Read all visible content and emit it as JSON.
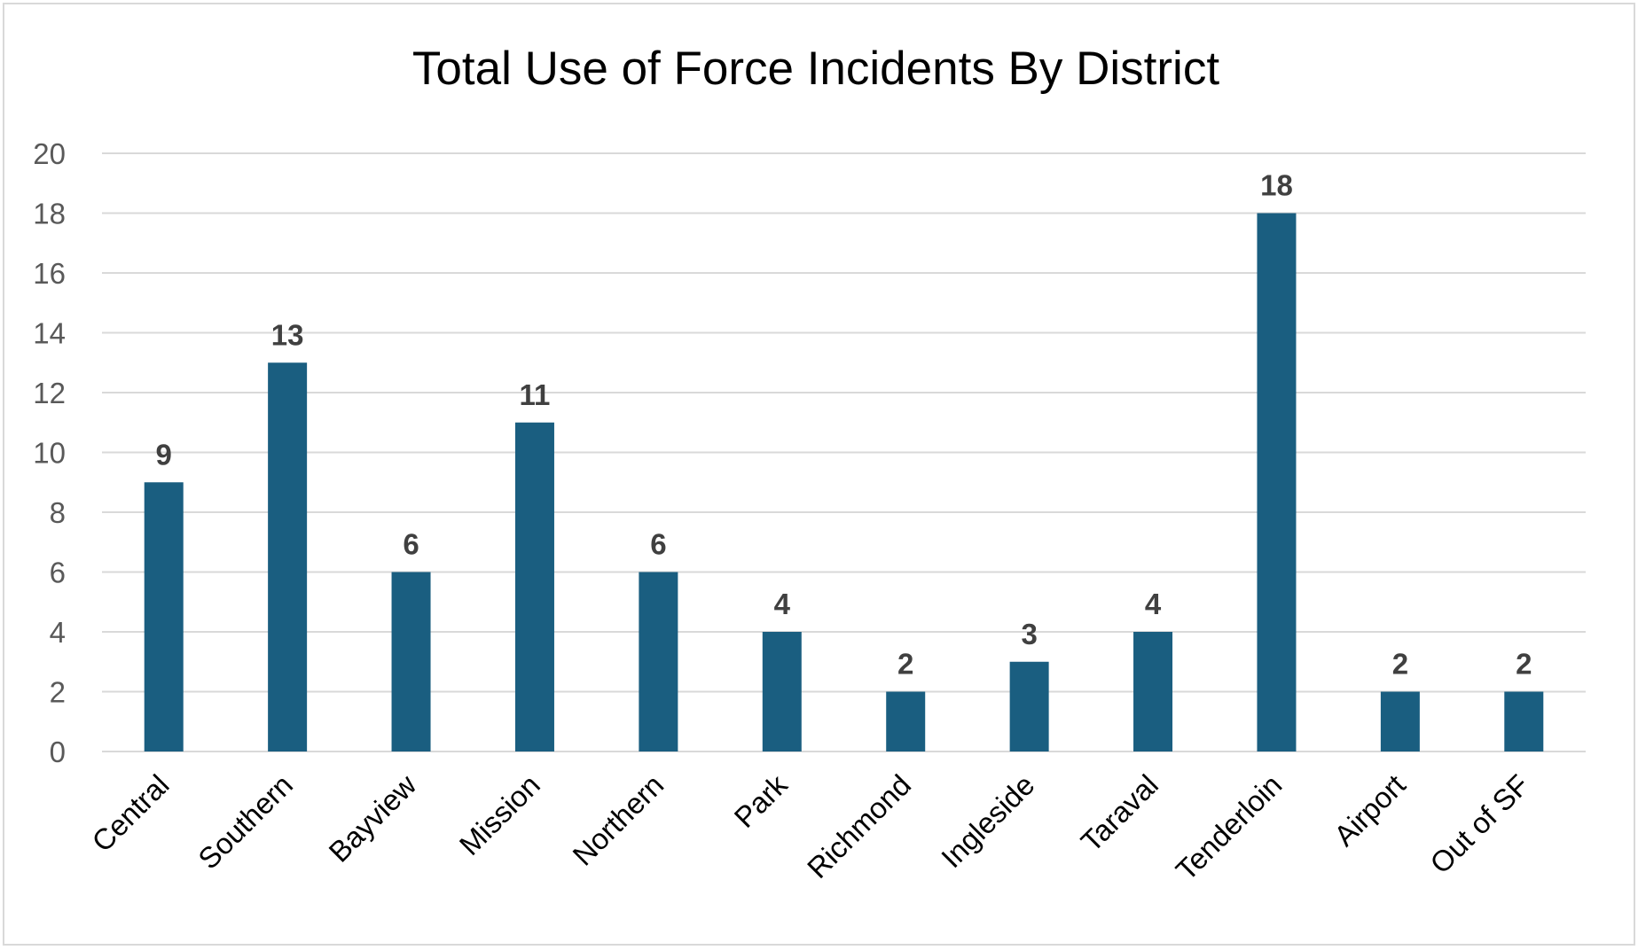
{
  "chart_data": {
    "type": "bar",
    "title": "Total Use of Force Incidents By District",
    "xlabel": "",
    "ylabel": "",
    "categories": [
      "Central",
      "Southern",
      "Bayview",
      "Mission",
      "Northern",
      "Park",
      "Richmond",
      "Ingleside",
      "Taraval",
      "Tenderloin",
      "Airport",
      "Out of SF"
    ],
    "values": [
      9,
      13,
      6,
      11,
      6,
      4,
      2,
      3,
      4,
      18,
      2,
      2
    ],
    "ylim": [
      0,
      20
    ],
    "yticks": [
      0,
      2,
      4,
      6,
      8,
      10,
      12,
      14,
      16,
      18,
      20
    ],
    "grid": true,
    "data_labels": true,
    "legend": "none",
    "bar_color": "#1a5e80"
  }
}
